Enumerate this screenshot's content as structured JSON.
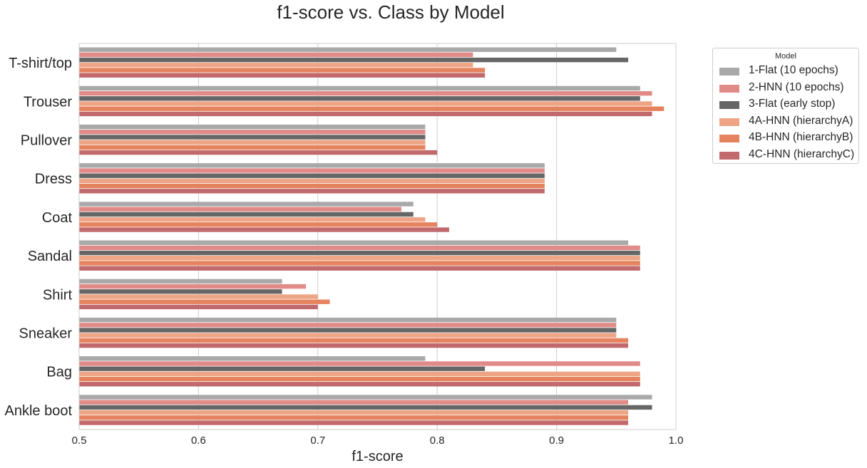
{
  "chart_data": {
    "type": "bar",
    "orientation": "horizontal",
    "title": "f1-score vs. Class by Model",
    "xlabel": "f1-score",
    "ylabel": "",
    "xlim": [
      0.5,
      1.0
    ],
    "xticks": [
      "0.5",
      "0.6",
      "0.7",
      "0.8",
      "0.9",
      "1.0"
    ],
    "grid": "vertical",
    "legend_title": "Model",
    "legend_position": "outside-top-right",
    "categories": [
      "T-shirt/top",
      "Trouser",
      "Pullover",
      "Dress",
      "Coat",
      "Sandal",
      "Shirt",
      "Sneaker",
      "Bag",
      "Ankle boot"
    ],
    "series": [
      {
        "name": "1-Flat (10 epochs)",
        "color": "#a9a9a9",
        "values": [
          0.95,
          0.97,
          0.79,
          0.89,
          0.78,
          0.96,
          0.67,
          0.95,
          0.79,
          0.98
        ]
      },
      {
        "name": "2-HNN (10 epochs)",
        "color": "#e08b87",
        "values": [
          0.83,
          0.98,
          0.79,
          0.89,
          0.77,
          0.97,
          0.69,
          0.95,
          0.97,
          0.96
        ]
      },
      {
        "name": "3-Flat (early stop)",
        "color": "#666666",
        "values": [
          0.96,
          0.97,
          0.79,
          0.89,
          0.78,
          0.97,
          0.67,
          0.95,
          0.84,
          0.98
        ]
      },
      {
        "name": "4A-HNN (hierarchyA)",
        "color": "#eda585",
        "values": [
          0.83,
          0.98,
          0.79,
          0.89,
          0.79,
          0.97,
          0.7,
          0.95,
          0.97,
          0.96
        ]
      },
      {
        "name": "4B-HNN (hierarchyB)",
        "color": "#e5835f",
        "values": [
          0.84,
          0.99,
          0.79,
          0.89,
          0.8,
          0.97,
          0.71,
          0.96,
          0.97,
          0.96
        ]
      },
      {
        "name": "4C-HNN (hierarchyC)",
        "color": "#c1696c",
        "values": [
          0.84,
          0.98,
          0.8,
          0.89,
          0.81,
          0.97,
          0.7,
          0.96,
          0.97,
          0.96
        ]
      }
    ]
  }
}
